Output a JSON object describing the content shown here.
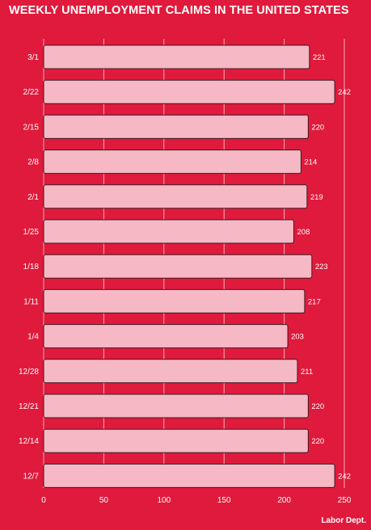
{
  "chart_data": {
    "type": "bar",
    "orientation": "horizontal",
    "title": "WEEKLY UNEMPLOYMENT CLAIMS IN THE UNITED STATES",
    "categories": [
      "3/1",
      "2/22",
      "2/15",
      "2/8",
      "2/1",
      "1/25",
      "1/18",
      "1/11",
      "1/4",
      "12/28",
      "12/21",
      "12/14",
      "12/7"
    ],
    "values": [
      221,
      242,
      220,
      214,
      219,
      208,
      223,
      217,
      203,
      211,
      220,
      220,
      242
    ],
    "xlim": [
      0,
      250
    ],
    "xticks": [
      0,
      50,
      100,
      150,
      200,
      250
    ],
    "grid": true,
    "xlabel": "",
    "ylabel": ""
  },
  "source": "Labor Dept.",
  "colors": {
    "background": "#e01a3c",
    "bar_fill": "#f5b8c4",
    "bar_stroke": "#3a1a20",
    "text": "#ffffff",
    "grid": "#f2aab6"
  }
}
